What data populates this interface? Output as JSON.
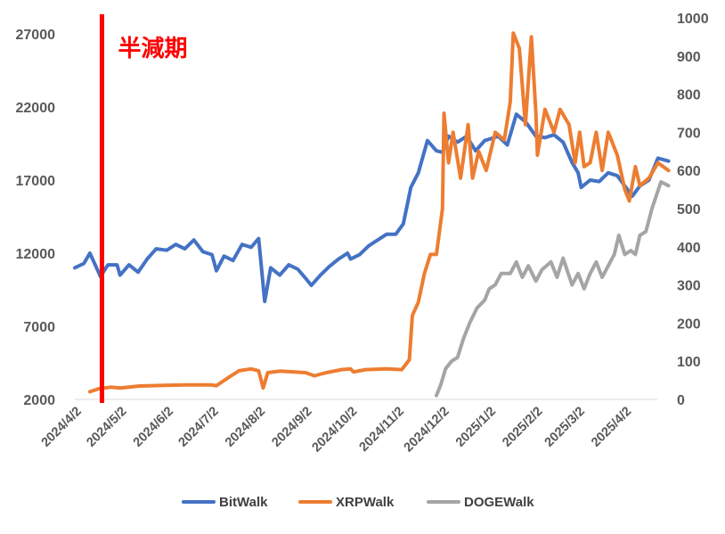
{
  "chart_data": {
    "type": "line",
    "title": "",
    "xlabel": "",
    "ylabel": "",
    "y2label": "",
    "grid": false,
    "legend_position": "bottom",
    "x_categories": [
      "2024/4/2",
      "2024/5/2",
      "2024/6/2",
      "2024/7/2",
      "2024/8/2",
      "2024/9/2",
      "2024/10/2",
      "2024/11/2",
      "2024/12/2",
      "2025/1/2",
      "2025/2/2",
      "2025/3/2",
      "2025/4/2"
    ],
    "y_left": {
      "range": [
        2000,
        27000
      ],
      "ticks": [
        2000,
        7000,
        12000,
        17000,
        22000,
        27000
      ],
      "tick_labels": [
        "2000",
        "7000",
        "12000",
        "17000",
        "22000",
        "27000"
      ]
    },
    "y_right": {
      "range": [
        0,
        1000
      ],
      "ticks": [
        0,
        100,
        200,
        300,
        400,
        500,
        600,
        700,
        800,
        900,
        1000
      ],
      "tick_labels": [
        "0",
        "100",
        "200",
        "300",
        "400",
        "500",
        "600",
        "700",
        "800",
        "900",
        "1000"
      ]
    },
    "annotation": {
      "label": "半減期",
      "date": "2024/4/20",
      "color": "#ff0000"
    },
    "series": [
      {
        "name": "BitWalk",
        "axis": "left",
        "color": "#4472c4",
        "points": [
          [
            "2024/4/2",
            11000
          ],
          [
            "2024/4/8",
            11300
          ],
          [
            "2024/4/12",
            12000
          ],
          [
            "2024/4/16",
            11100
          ],
          [
            "2024/4/19",
            10400
          ],
          [
            "2024/4/24",
            11200
          ],
          [
            "2024/4/30",
            11200
          ],
          [
            "2024/5/2",
            10500
          ],
          [
            "2024/5/8",
            11200
          ],
          [
            "2024/5/14",
            10700
          ],
          [
            "2024/5/20",
            11600
          ],
          [
            "2024/5/26",
            12300
          ],
          [
            "2024/6/2",
            12200
          ],
          [
            "2024/6/8",
            12600
          ],
          [
            "2024/6/14",
            12300
          ],
          [
            "2024/6/20",
            12900
          ],
          [
            "2024/6/26",
            12100
          ],
          [
            "2024/7/2",
            11900
          ],
          [
            "2024/7/5",
            10800
          ],
          [
            "2024/7/10",
            11800
          ],
          [
            "2024/7/16",
            11500
          ],
          [
            "2024/7/22",
            12600
          ],
          [
            "2024/7/28",
            12400
          ],
          [
            "2024/8/2",
            13000
          ],
          [
            "2024/8/6",
            8700
          ],
          [
            "2024/8/10",
            11000
          ],
          [
            "2024/8/16",
            10500
          ],
          [
            "2024/8/22",
            11200
          ],
          [
            "2024/8/28",
            10900
          ],
          [
            "2024/9/2",
            10300
          ],
          [
            "2024/9/6",
            9800
          ],
          [
            "2024/9/12",
            10500
          ],
          [
            "2024/9/18",
            11100
          ],
          [
            "2024/9/24",
            11600
          ],
          [
            "2024/9/30",
            12000
          ],
          [
            "2024/10/2",
            11600
          ],
          [
            "2024/10/8",
            11900
          ],
          [
            "2024/10/14",
            12500
          ],
          [
            "2024/10/20",
            12900
          ],
          [
            "2024/10/26",
            13300
          ],
          [
            "2024/11/1",
            13300
          ],
          [
            "2024/11/6",
            14000
          ],
          [
            "2024/11/11",
            16500
          ],
          [
            "2024/11/16",
            17500
          ],
          [
            "2024/11/22",
            19700
          ],
          [
            "2024/11/28",
            19000
          ],
          [
            "2024/12/2",
            18900
          ],
          [
            "2024/12/6",
            20000
          ],
          [
            "2024/12/12",
            19600
          ],
          [
            "2024/12/18",
            20000
          ],
          [
            "2024/12/24",
            19000
          ],
          [
            "2024/12/30",
            19700
          ],
          [
            "2025/1/2",
            19800
          ],
          [
            "2025/1/8",
            20000
          ],
          [
            "2025/1/14",
            19400
          ],
          [
            "2025/1/20",
            21500
          ],
          [
            "2025/1/26",
            21000
          ],
          [
            "2025/2/2",
            20000
          ],
          [
            "2025/2/8",
            19900
          ],
          [
            "2025/2/14",
            20100
          ],
          [
            "2025/2/20",
            19600
          ],
          [
            "2025/2/26",
            18200
          ],
          [
            "2025/3/2",
            17500
          ],
          [
            "2025/3/4",
            16500
          ],
          [
            "2025/3/10",
            17000
          ],
          [
            "2025/3/16",
            16900
          ],
          [
            "2025/3/22",
            17500
          ],
          [
            "2025/3/28",
            17300
          ],
          [
            "2025/4/2",
            16600
          ],
          [
            "2025/4/7",
            15900
          ],
          [
            "2025/4/12",
            16600
          ],
          [
            "2025/4/18",
            17000
          ],
          [
            "2025/4/24",
            18500
          ],
          [
            "2025/5/1",
            18300
          ]
        ]
      },
      {
        "name": "XRPWalk",
        "axis": "right",
        "color": "#ed7d31",
        "points": [
          [
            "2024/4/12",
            20
          ],
          [
            "2024/4/18",
            28
          ],
          [
            "2024/4/26",
            32
          ],
          [
            "2024/5/2",
            30
          ],
          [
            "2024/5/15",
            35
          ],
          [
            "2024/6/1",
            37
          ],
          [
            "2024/6/15",
            38
          ],
          [
            "2024/7/1",
            38
          ],
          [
            "2024/7/5",
            36
          ],
          [
            "2024/7/14",
            60
          ],
          [
            "2024/7/20",
            75
          ],
          [
            "2024/7/28",
            80
          ],
          [
            "2024/8/2",
            75
          ],
          [
            "2024/8/5",
            30
          ],
          [
            "2024/8/8",
            70
          ],
          [
            "2024/8/16",
            74
          ],
          [
            "2024/8/26",
            72
          ],
          [
            "2024/9/2",
            70
          ],
          [
            "2024/9/8",
            62
          ],
          [
            "2024/9/16",
            70
          ],
          [
            "2024/9/26",
            78
          ],
          [
            "2024/10/2",
            80
          ],
          [
            "2024/10/4",
            72
          ],
          [
            "2024/10/12",
            78
          ],
          [
            "2024/10/26",
            80
          ],
          [
            "2024/11/5",
            78
          ],
          [
            "2024/11/10",
            104
          ],
          [
            "2024/11/12",
            220
          ],
          [
            "2024/11/16",
            255
          ],
          [
            "2024/11/20",
            330
          ],
          [
            "2024/11/24",
            380
          ],
          [
            "2024/11/28",
            380
          ],
          [
            "2024/12/2",
            500
          ],
          [
            "2024/12/3",
            750
          ],
          [
            "2024/12/6",
            620
          ],
          [
            "2024/12/9",
            700
          ],
          [
            "2024/12/14",
            580
          ],
          [
            "2024/12/19",
            720
          ],
          [
            "2024/12/22",
            580
          ],
          [
            "2024/12/26",
            650
          ],
          [
            "2024/12/31",
            600
          ],
          [
            "2025/1/6",
            700
          ],
          [
            "2025/1/12",
            680
          ],
          [
            "2025/1/16",
            780
          ],
          [
            "2025/1/18",
            960
          ],
          [
            "2025/1/22",
            920
          ],
          [
            "2025/1/26",
            720
          ],
          [
            "2025/1/30",
            950
          ],
          [
            "2025/2/2",
            750
          ],
          [
            "2025/2/3",
            640
          ],
          [
            "2025/2/8",
            760
          ],
          [
            "2025/2/14",
            700
          ],
          [
            "2025/2/18",
            760
          ],
          [
            "2025/2/24",
            720
          ],
          [
            "2025/2/28",
            620
          ],
          [
            "2025/3/3",
            700
          ],
          [
            "2025/3/6",
            610
          ],
          [
            "2025/3/10",
            620
          ],
          [
            "2025/3/14",
            700
          ],
          [
            "2025/3/18",
            600
          ],
          [
            "2025/3/22",
            700
          ],
          [
            "2025/3/28",
            640
          ],
          [
            "2025/4/2",
            550
          ],
          [
            "2025/4/5",
            520
          ],
          [
            "2025/4/9",
            610
          ],
          [
            "2025/4/12",
            560
          ],
          [
            "2025/4/18",
            580
          ],
          [
            "2025/4/24",
            620
          ],
          [
            "2025/5/1",
            600
          ]
        ]
      },
      {
        "name": "DOGEWalk",
        "axis": "right",
        "color": "#a5a5a5",
        "points": [
          [
            "2024/11/28",
            10
          ],
          [
            "2024/12/1",
            40
          ],
          [
            "2024/12/4",
            80
          ],
          [
            "2024/12/8",
            100
          ],
          [
            "2024/12/12",
            110
          ],
          [
            "2024/12/16",
            160
          ],
          [
            "2024/12/20",
            200
          ],
          [
            "2024/12/25",
            240
          ],
          [
            "2024/12/30",
            260
          ],
          [
            "2025/1/2",
            290
          ],
          [
            "2025/1/6",
            300
          ],
          [
            "2025/1/10",
            330
          ],
          [
            "2025/1/16",
            330
          ],
          [
            "2025/1/20",
            360
          ],
          [
            "2025/1/24",
            320
          ],
          [
            "2025/1/28",
            350
          ],
          [
            "2025/2/2",
            310
          ],
          [
            "2025/2/6",
            340
          ],
          [
            "2025/2/12",
            360
          ],
          [
            "2025/2/16",
            320
          ],
          [
            "2025/2/20",
            370
          ],
          [
            "2025/2/26",
            300
          ],
          [
            "2025/3/2",
            330
          ],
          [
            "2025/3/6",
            290
          ],
          [
            "2025/3/10",
            330
          ],
          [
            "2025/3/14",
            360
          ],
          [
            "2025/3/18",
            320
          ],
          [
            "2025/3/22",
            350
          ],
          [
            "2025/3/26",
            380
          ],
          [
            "2025/3/29",
            430
          ],
          [
            "2025/4/2",
            380
          ],
          [
            "2025/4/6",
            390
          ],
          [
            "2025/4/9",
            380
          ],
          [
            "2025/4/12",
            430
          ],
          [
            "2025/4/16",
            440
          ],
          [
            "2025/4/20",
            500
          ],
          [
            "2025/4/26",
            570
          ],
          [
            "2025/5/1",
            560
          ]
        ]
      }
    ]
  }
}
